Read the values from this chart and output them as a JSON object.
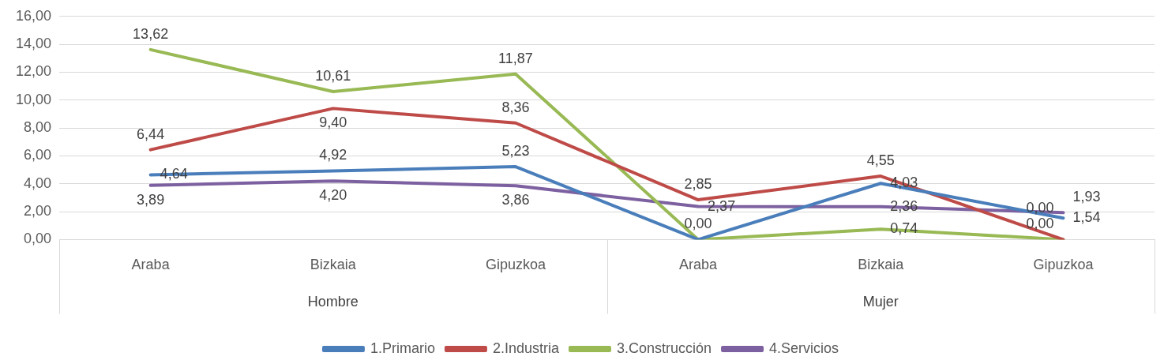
{
  "chart_data": {
    "type": "line",
    "categories": [
      "Araba",
      "Bizkaia",
      "Gipuzkoa",
      "Araba",
      "Bizkaia",
      "Gipuzkoa"
    ],
    "annotations": [
      "Hombre",
      "Mujer"
    ],
    "series": [
      {
        "name": "1.Primario",
        "color": "#4a7ebb",
        "values": [
          4.64,
          4.92,
          5.23,
          0,
          4.03,
          1.54
        ],
        "value_labels": [
          "4,64",
          "4,92",
          "5,23",
          null,
          "4,03",
          "1,54"
        ]
      },
      {
        "name": "2.Industria",
        "color": "#be4b48",
        "values": [
          6.44,
          9.4,
          8.36,
          2.85,
          4.55,
          0
        ],
        "value_labels": [
          "6,44",
          "9,40",
          "8,36",
          "2,85",
          "4,55",
          "0,00"
        ]
      },
      {
        "name": "3.Construcción",
        "color": "#98b954",
        "values": [
          13.62,
          10.61,
          11.87,
          0,
          0.74,
          0
        ],
        "value_labels": [
          "13,62",
          "10,61",
          "11,87",
          "0,00",
          "0,74",
          "0,00"
        ]
      },
      {
        "name": "4.Servicios",
        "color": "#7d60a0",
        "values": [
          3.89,
          4.2,
          3.86,
          2.37,
          2.36,
          1.93
        ],
        "value_labels": [
          "3,89",
          "4,20",
          "3,86",
          "2,37",
          "2,36",
          "1,93"
        ]
      }
    ],
    "ylim": [
      0,
      16
    ],
    "yticks": [
      {
        "value": 0,
        "label": "0,00"
      },
      {
        "value": 2,
        "label": "2,00"
      },
      {
        "value": 4,
        "label": "4,00"
      },
      {
        "value": 6,
        "label": "6,00"
      },
      {
        "value": 8,
        "label": "8,00"
      },
      {
        "value": 10,
        "label": "10,00"
      },
      {
        "value": 12,
        "label": "12,00"
      },
      {
        "value": 14,
        "label": "14,00"
      },
      {
        "value": 16,
        "label": "16,00"
      }
    ],
    "grid": "y",
    "legend": "bottom",
    "marker": "none",
    "line_style": "solid"
  }
}
